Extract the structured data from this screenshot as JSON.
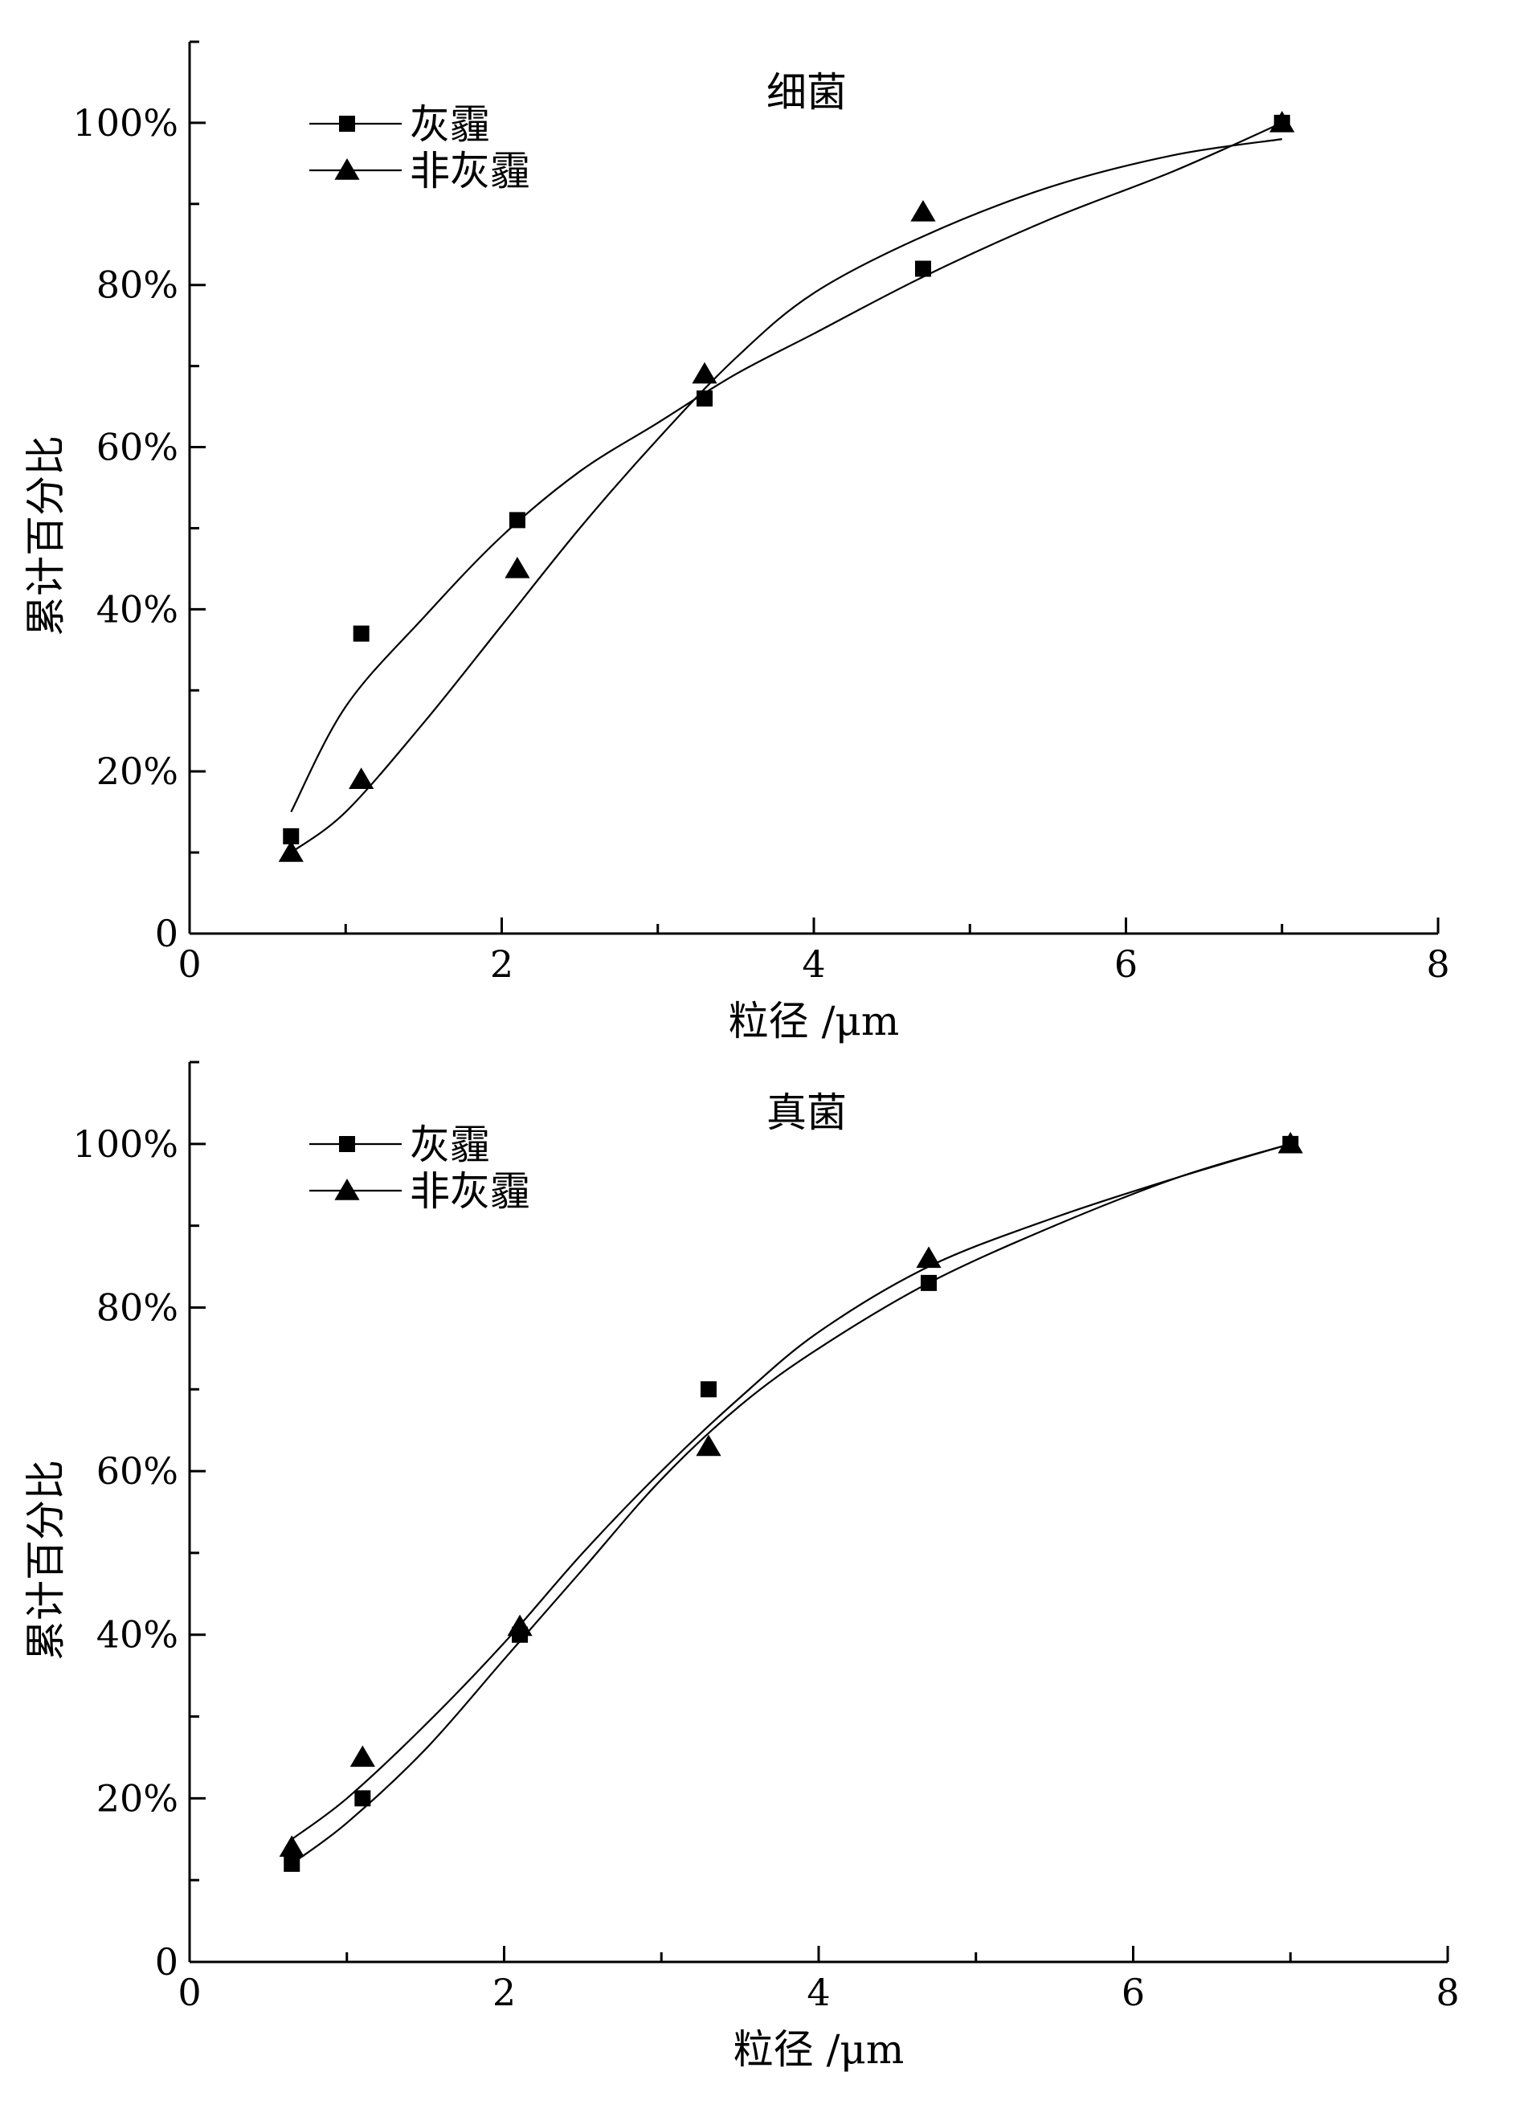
{
  "chart_data": [
    {
      "type": "scatter",
      "title": "细菌",
      "xlabel": "粒径 /μm",
      "ylabel": "累计百分比",
      "xlim": [
        0,
        8
      ],
      "ylim": [
        0,
        1.1
      ],
      "xticks": [
        0,
        2,
        4,
        6,
        8
      ],
      "xtick_labels": [
        "0",
        "2",
        "4",
        "6",
        "8"
      ],
      "yticks": [
        0,
        0.2,
        0.4,
        0.6,
        0.8,
        1.0
      ],
      "ytick_labels": [
        "0",
        "20%",
        "40%",
        "60%",
        "80%",
        "100%"
      ],
      "grid": false,
      "legend_position": "top-left",
      "series": [
        {
          "name": "灰霾",
          "marker": "square",
          "x": [
            0.65,
            1.1,
            2.1,
            3.3,
            4.7,
            7.0
          ],
          "y": [
            0.12,
            0.37,
            0.51,
            0.66,
            0.82,
            1.0
          ],
          "fit": [
            [
              0.65,
              0.15
            ],
            [
              1.0,
              0.28
            ],
            [
              1.5,
              0.39
            ],
            [
              2.0,
              0.49
            ],
            [
              2.5,
              0.57
            ],
            [
              3.0,
              0.63
            ],
            [
              3.5,
              0.69
            ],
            [
              4.0,
              0.74
            ],
            [
              4.7,
              0.81
            ],
            [
              5.5,
              0.88
            ],
            [
              6.3,
              0.94
            ],
            [
              7.0,
              1.0
            ]
          ]
        },
        {
          "name": "非灰霾",
          "marker": "triangle",
          "x": [
            0.65,
            1.1,
            2.1,
            3.3,
            4.7,
            7.0
          ],
          "y": [
            0.1,
            0.19,
            0.45,
            0.69,
            0.89,
            1.0
          ],
          "fit": [
            [
              0.65,
              0.1
            ],
            [
              1.0,
              0.15
            ],
            [
              1.5,
              0.26
            ],
            [
              2.0,
              0.38
            ],
            [
              2.5,
              0.5
            ],
            [
              3.0,
              0.61
            ],
            [
              3.5,
              0.71
            ],
            [
              4.0,
              0.79
            ],
            [
              4.7,
              0.86
            ],
            [
              5.5,
              0.92
            ],
            [
              6.3,
              0.96
            ],
            [
              7.0,
              0.98
            ]
          ]
        }
      ]
    },
    {
      "type": "scatter",
      "title": "真菌",
      "xlabel": "粒径 /μm",
      "ylabel": "累计百分比",
      "xlim": [
        0,
        8
      ],
      "ylim": [
        0,
        1.1
      ],
      "xticks": [
        0,
        2,
        4,
        6,
        8
      ],
      "xtick_labels": [
        "0",
        "2",
        "4",
        "6",
        "8"
      ],
      "yticks": [
        0,
        0.2,
        0.4,
        0.6,
        0.8,
        1.0
      ],
      "ytick_labels": [
        "0",
        "20%",
        "40%",
        "60%",
        "80%",
        "100%"
      ],
      "grid": false,
      "legend_position": "top-left",
      "series": [
        {
          "name": "灰霾",
          "marker": "square",
          "x": [
            0.65,
            1.1,
            2.1,
            3.3,
            4.7,
            7.0
          ],
          "y": [
            0.12,
            0.2,
            0.4,
            0.7,
            0.83,
            1.0
          ],
          "fit": [
            [
              0.65,
              0.12
            ],
            [
              1.0,
              0.17
            ],
            [
              1.5,
              0.26
            ],
            [
              2.0,
              0.37
            ],
            [
              2.5,
              0.48
            ],
            [
              3.0,
              0.59
            ],
            [
              3.5,
              0.68
            ],
            [
              4.0,
              0.75
            ],
            [
              4.7,
              0.83
            ],
            [
              5.5,
              0.9
            ],
            [
              6.3,
              0.96
            ],
            [
              7.0,
              1.0
            ]
          ]
        },
        {
          "name": "非灰霾",
          "marker": "triangle",
          "x": [
            0.65,
            1.1,
            2.1,
            3.3,
            4.7,
            7.0
          ],
          "y": [
            0.14,
            0.25,
            0.41,
            0.63,
            0.86,
            1.0
          ],
          "fit": [
            [
              0.65,
              0.15
            ],
            [
              1.0,
              0.2
            ],
            [
              1.5,
              0.29
            ],
            [
              2.0,
              0.39
            ],
            [
              2.5,
              0.5
            ],
            [
              3.0,
              0.6
            ],
            [
              3.5,
              0.69
            ],
            [
              4.0,
              0.77
            ],
            [
              4.7,
              0.85
            ],
            [
              5.5,
              0.91
            ],
            [
              6.3,
              0.96
            ],
            [
              7.0,
              1.0
            ]
          ]
        }
      ]
    }
  ]
}
